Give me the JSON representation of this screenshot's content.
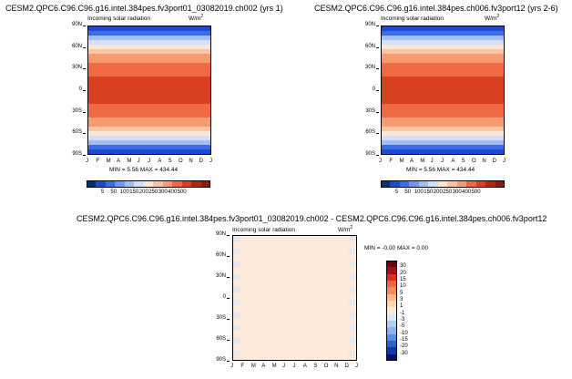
{
  "chart_data": [
    {
      "type": "heatmap",
      "title": "CESM2.QPC6.C96.C96.g16.intel.384pes.fv3port01_03082019.ch002 (yrs 1)",
      "subtitle": "Incoming solar radiation",
      "units": "W/m",
      "units_sup": "2",
      "x_tick_labels": [
        "J",
        "F",
        "M",
        "A",
        "M",
        "J",
        "J",
        "A",
        "S",
        "O",
        "N",
        "D",
        "J"
      ],
      "y_tick_labels": [
        "90N",
        "60N",
        "30N",
        "0",
        "30S",
        "60S",
        "90S"
      ],
      "stats": "MIN =    5.56 MAX =  434.44",
      "colorbar": {
        "labels": [
          "5",
          "50",
          "100",
          "150",
          "200",
          "250",
          "300",
          "400",
          "500"
        ],
        "colors": [
          "#08306b",
          "#1c4bd1",
          "#3a6ee8",
          "#6f97f0",
          "#a3bdf5",
          "#d2defa",
          "#fde6d6",
          "#fbc4a4",
          "#f79b72",
          "#ef6a43",
          "#d8401f",
          "#b2260e",
          "#8c1a07"
        ]
      },
      "rows_north_to_south": [
        5.56,
        100,
        175,
        240,
        290,
        330,
        360,
        385,
        405,
        420,
        430,
        434,
        434,
        434,
        434,
        434,
        434,
        430,
        420,
        405,
        385,
        360,
        330,
        290,
        240,
        175,
        100,
        5.56
      ]
    },
    {
      "type": "heatmap",
      "title": "CESM2.QPC6.C96.C96.g16.intel.384pes.ch006.fv3port12 (yrs 2-6)",
      "subtitle": "Incoming solar radiation",
      "units": "W/m",
      "units_sup": "2",
      "x_tick_labels": [
        "J",
        "F",
        "M",
        "A",
        "M",
        "J",
        "J",
        "A",
        "S",
        "O",
        "N",
        "D",
        "J"
      ],
      "y_tick_labels": [
        "90N",
        "60N",
        "30N",
        "0",
        "30S",
        "60S",
        "90S"
      ],
      "stats": "MIN =    5.56 MAX =  434.44",
      "colorbar": {
        "labels": [
          "5",
          "50",
          "100",
          "150",
          "200",
          "250",
          "300",
          "400",
          "500"
        ],
        "colors": [
          "#08306b",
          "#1c4bd1",
          "#3a6ee8",
          "#6f97f0",
          "#a3bdf5",
          "#d2defa",
          "#fde6d6",
          "#fbc4a4",
          "#f79b72",
          "#ef6a43",
          "#d8401f",
          "#b2260e",
          "#8c1a07"
        ]
      },
      "rows_north_to_south": [
        5.56,
        100,
        175,
        240,
        290,
        330,
        360,
        385,
        405,
        420,
        430,
        434,
        434,
        434,
        434,
        434,
        434,
        430,
        420,
        405,
        385,
        360,
        330,
        290,
        240,
        175,
        100,
        5.56
      ]
    },
    {
      "type": "heatmap",
      "title": "CESM2.QPC6.C96.C96.g16.intel.384pes.fv3port01_03082019.ch002 - CESM2.QPC6.C96.C96.g16.intel.384pes.ch006.fv3port12",
      "subtitle": "Incoming solar radiation",
      "units": "W/m",
      "units_sup": "2",
      "x_tick_labels": [
        "J",
        "F",
        "M",
        "A",
        "M",
        "J",
        "J",
        "A",
        "S",
        "O",
        "N",
        "D",
        "J"
      ],
      "y_tick_labels": [
        "90N",
        "60N",
        "30N",
        "0",
        "30S",
        "60S",
        "90S"
      ],
      "stats": "MIN =   -0.00 MAX =    0.00",
      "field_value": 0.0,
      "colorbar": {
        "labels": [
          "30",
          "20",
          "15",
          "10",
          "5",
          "3",
          "1",
          "-1",
          "-3",
          "-5",
          "-10",
          "-15",
          "-20",
          "-30"
        ],
        "colors": [
          "#67000d",
          "#a50f15",
          "#d7301f",
          "#ef6548",
          "#fc8d59",
          "#fdbb84",
          "#fdd9b4",
          "#fdeadb",
          "#dde7f6",
          "#b7cdf0",
          "#8fb1ea",
          "#5c8ee0",
          "#2f63cc",
          "#1536a8",
          "#08146b"
        ]
      }
    }
  ]
}
